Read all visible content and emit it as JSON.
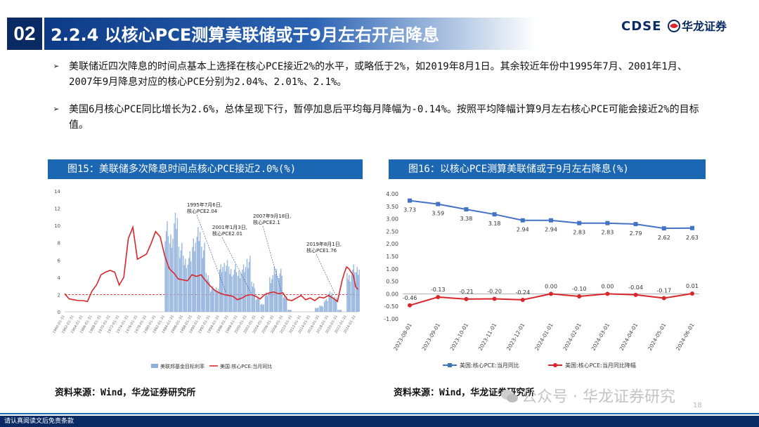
{
  "header": {
    "section_number": "02",
    "title": "2.2.4 以核心PCE测算美联储或于9月左右开启降息",
    "logo_text": "CDSE",
    "brand_name": "华龙证券"
  },
  "bullets": [
    {
      "mark": "➢",
      "text": "美联储近四次降息的时间点基本上选择在核心PCE接近2%的水平，或略低于2%，如2019年8月1日。其余较近年份中1995年7月、2001年1月、2007年9月降息对应的核心PCE分别为2.04%、2.01%、2.1%。"
    },
    {
      "mark": "➢",
      "text": "美国6月核心PCE同比增长为2.6%，总体呈现下行，暂停加息后平均每月降幅为-0.14%。按照平均降幅计算9月左右核心PCE可能会接近2%的目标值。"
    }
  ],
  "figure15": {
    "title": "图15：美联储多次降息时间点核心PCE接近2.0%(%)",
    "source": "资料来源：Wind，华龙证券研究所",
    "annotations": [
      "1995年7月6日,\n核心PCE2.04",
      "2001年1月3日,\n核心PCE2.01",
      "2007年9月18日,\n核心PCE2.1",
      "2019年8月1日,\n核心PCE1.76"
    ]
  },
  "figure16": {
    "title": "图16：以核心PCE测算美联储或于9月左右降息(%)",
    "source": "资料来源：Wind，华龙证券研究所"
  },
  "chart_data": [
    {
      "type": "line",
      "title": "图15：美联储多次降息时间点核心PCE接近2.0%(%)",
      "ylim": [
        0,
        14
      ],
      "y_ticks": [
        "0",
        "2",
        "4",
        "6",
        "8",
        "10",
        "12",
        "14"
      ],
      "x_ticks": [
        "1960-01-31",
        "1962-01-31",
        "1964-01-31",
        "1966-01-31",
        "1968-01-31",
        "1970-01-31",
        "1972-01-31",
        "1974-01-31",
        "1976-01-31",
        "1978-01-31",
        "1980-01-31",
        "1982-01-31",
        "1984-01-31",
        "1986-01-31",
        "1988-01-31",
        "1990-01-31",
        "1992-01-31",
        "1994-01-31",
        "1996-01-31",
        "1998-01-31",
        "2000-01-31",
        "2002-01-31",
        "2004-01-31",
        "2006-01-31",
        "2008-01-31",
        "2010-01-31",
        "2012-01-31",
        "2014-01-31",
        "2016-01-31",
        "2018-01-31",
        "2020-01-31",
        "2022-01-31",
        "2024-01-31"
      ],
      "legend": [
        "美联邦基金目标利率",
        "美国:核心PCE:当月同比"
      ],
      "reference_line": 2,
      "series": [
        {
          "name": "美国:核心PCE:当月同比",
          "x": [
            1960,
            1961,
            1962,
            1963,
            1964,
            1965,
            1966,
            1967,
            1968,
            1969,
            1970,
            1971,
            1972,
            1973,
            1974,
            1975,
            1976,
            1977,
            1978,
            1979,
            1980,
            1981,
            1982,
            1983,
            1984,
            1985,
            1986,
            1987,
            1988,
            1989,
            1990,
            1991,
            1992,
            1993,
            1994,
            1995,
            1996,
            1997,
            1998,
            1999,
            2000,
            2001,
            2002,
            2003,
            2004,
            2005,
            2006,
            2007,
            2008,
            2009,
            2010,
            2011,
            2012,
            2013,
            2014,
            2015,
            2016,
            2017,
            2018,
            2019,
            2020,
            2021,
            2021.5,
            2022,
            2022.5,
            2023,
            2023.5,
            2024,
            2024.5
          ],
          "values": [
            2.1,
            1.5,
            1.4,
            1.3,
            1.3,
            1.2,
            2.4,
            3.1,
            4.3,
            4.6,
            4.8,
            4.6,
            3.1,
            4.0,
            8.5,
            9.8,
            6.1,
            6.4,
            6.7,
            7.9,
            9.3,
            8.7,
            6.5,
            5.0,
            4.5,
            3.8,
            3.7,
            3.6,
            4.3,
            4.1,
            4.3,
            3.6,
            3.0,
            2.5,
            2.2,
            2.0,
            1.9,
            1.8,
            1.4,
            1.6,
            1.9,
            2.0,
            1.8,
            1.5,
            2.0,
            2.2,
            2.3,
            2.1,
            2.2,
            1.4,
            1.3,
            1.6,
            1.9,
            1.4,
            1.6,
            1.3,
            1.7,
            1.6,
            1.9,
            1.6,
            1.2,
            3.6,
            4.5,
            5.2,
            5.0,
            4.6,
            4.2,
            2.9,
            2.6
          ]
        },
        {
          "name": "美联邦基金目标利率",
          "x": [
            1982,
            1983,
            1984,
            1985,
            1986,
            1987,
            1988,
            1989,
            1990,
            1991,
            1992,
            1993,
            1994,
            1995,
            1996,
            1997,
            1998,
            1999,
            2000,
            2001,
            2002,
            2003,
            2004,
            2005,
            2006,
            2007,
            2008,
            2009,
            2015,
            2016,
            2017,
            2018,
            2019,
            2020,
            2022,
            2023,
            2024
          ],
          "values": [
            10.5,
            9.5,
            11.5,
            8.0,
            6.5,
            7.0,
            9.0,
            9.8,
            8.0,
            4.5,
            3.0,
            3.0,
            5.5,
            6.0,
            5.25,
            5.5,
            5.0,
            5.5,
            6.5,
            3.5,
            1.75,
            1.0,
            2.25,
            4.25,
            5.25,
            5.0,
            2.0,
            0.25,
            0.5,
            0.75,
            1.5,
            2.5,
            1.75,
            0.25,
            4.5,
            5.5,
            5.5
          ]
        }
      ]
    },
    {
      "type": "line",
      "title": "图16：以核心PCE测算美联储或于9月左右降息(%)",
      "categories": [
        "2023-08-01",
        "2023-09-01",
        "2023-10-01",
        "2023-11-01",
        "2023-12-01",
        "2024-01-01",
        "2024-02-01",
        "2024-03-01",
        "2024-04-01",
        "2024-05-01",
        "2024-06-01"
      ],
      "ylim": [
        -1.0,
        4.0
      ],
      "y_ticks": [
        "4.00",
        "3.50",
        "3.00",
        "2.50",
        "2.00",
        "1.50",
        "1.00",
        "0.50",
        "0.00",
        "-0.50",
        "-1.00"
      ],
      "series": [
        {
          "name": "美国:核心PCE:当月同比",
          "values": [
            3.73,
            3.59,
            3.38,
            3.18,
            2.94,
            2.94,
            2.83,
            2.83,
            2.79,
            2.62,
            2.63
          ],
          "labels": [
            "3.73",
            "3.59",
            "3.38",
            "3.18",
            "2.94",
            "2.94",
            "2.83",
            "2.83",
            "2.79",
            "2.62",
            "2.63"
          ],
          "color": "#4472c4"
        },
        {
          "name": "美国:核心PCE:当月同比降幅",
          "values": [
            -0.46,
            -0.13,
            -0.21,
            -0.2,
            -0.24,
            0.0,
            -0.1,
            0.0,
            -0.04,
            -0.17,
            0.01
          ],
          "labels": [
            "-0.46",
            "-0.13",
            "-0.21",
            "-0.20",
            "-0.24",
            "0.00",
            "-0.10",
            "0.00",
            "-0.04",
            "-0.17",
            "0.01"
          ],
          "color": "#d9262b"
        }
      ]
    }
  ],
  "watermark": "公众号 · 华龙证券研究",
  "page_number": "18",
  "footer": "请认真阅读文后免责条款",
  "colors": {
    "navy": "#0a2a63",
    "blue": "#1c67b3",
    "pce_blue": "#4472c4",
    "red": "#d9262b"
  }
}
